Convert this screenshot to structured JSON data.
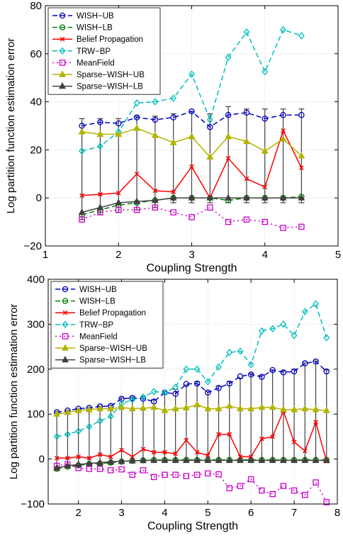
{
  "chart_data": [
    {
      "type": "line",
      "xlabel": "Coupling Strength",
      "ylabel": "Log partition function estimation error",
      "xlim": [
        1,
        5
      ],
      "ylim": [
        -20,
        80
      ],
      "xticks": [
        1,
        2,
        3,
        4,
        5
      ],
      "yticks": [
        -20,
        0,
        20,
        40,
        60,
        80
      ],
      "xtick_labels": [
        "1",
        "2",
        "3",
        "4",
        "5"
      ],
      "ytick_labels": [
        "−20",
        "0",
        "20",
        "40",
        "60",
        "80"
      ],
      "grid": true,
      "legend_position": "top-left",
      "x": [
        1.5,
        1.75,
        2.0,
        2.25,
        2.5,
        2.75,
        3.0,
        3.25,
        3.5,
        3.75,
        4.0,
        4.25,
        4.5
      ],
      "error_bars": {
        "from": "Sparse-WISH-LB",
        "to": "Sparse-WISH-UB",
        "cap_low": [
          -9,
          -7,
          -6,
          -5,
          -4,
          -2,
          -2,
          -2,
          -2,
          -2,
          -2,
          -2,
          -2
        ],
        "cap_high": [
          33,
          33,
          33,
          34,
          34,
          35,
          36,
          35,
          38,
          37,
          37,
          37,
          37
        ]
      },
      "series": [
        {
          "name": "WISH−UB",
          "color": "#0000cc",
          "line": "dashed",
          "marker": "circle",
          "values": [
            30,
            31.5,
            31,
            33.5,
            32.5,
            33.5,
            36,
            29.5,
            34.5,
            35.5,
            33,
            34.5,
            34.5
          ]
        },
        {
          "name": "WISH−LB",
          "color": "#008000",
          "line": "dashed",
          "marker": "circle",
          "values": [
            -7,
            -5,
            -3,
            -2,
            -1,
            0,
            0,
            0,
            -1,
            0,
            0,
            0,
            0.5
          ]
        },
        {
          "name": "Belief Propagation",
          "color": "#ff0000",
          "line": "solid",
          "marker": "x",
          "values": [
            1,
            1.5,
            2,
            10,
            3,
            2.5,
            13,
            0,
            16.5,
            8,
            4.5,
            28,
            12.5
          ]
        },
        {
          "name": "TRW−BP",
          "color": "#00bfbf",
          "line": "dashed",
          "marker": "diamond",
          "values": [
            19.5,
            21.5,
            27.5,
            39.5,
            40,
            41.5,
            51.5,
            32.5,
            58.5,
            69,
            52.5,
            70,
            67.5
          ]
        },
        {
          "name": "MeanField",
          "color": "#cc00cc",
          "line": "dotted",
          "marker": "square",
          "values": [
            -9,
            -6,
            -5,
            -5,
            -4,
            -6,
            -8,
            -4,
            -10,
            -9,
            -10,
            -12.5,
            -12
          ]
        },
        {
          "name": "Sparse−WISH−UB",
          "color": "#b3b300",
          "line": "solid",
          "marker": "triangle",
          "values": [
            27.5,
            26.5,
            26.5,
            29,
            26,
            23,
            25.5,
            17,
            25.5,
            23.5,
            19.5,
            24.5,
            17.5
          ]
        },
        {
          "name": "Sparse−WISH−LB",
          "color": "#404040",
          "line": "solid",
          "marker": "triangle",
          "values": [
            -6,
            -4,
            -2,
            -1.5,
            -1,
            0,
            0,
            0,
            0,
            0,
            0,
            0,
            0
          ]
        }
      ]
    },
    {
      "type": "line",
      "xlabel": "Coupling Strength",
      "ylabel": "Log partition function estimation error",
      "xlim": [
        1.3,
        8
      ],
      "ylim": [
        -100,
        400
      ],
      "xticks": [
        2,
        3,
        4,
        5,
        6,
        7,
        8
      ],
      "yticks": [
        -100,
        0,
        100,
        200,
        300,
        400
      ],
      "xtick_labels": [
        "2",
        "3",
        "4",
        "5",
        "6",
        "7",
        "8"
      ],
      "ytick_labels": [
        "−100",
        "0",
        "100",
        "200",
        "300",
        "400"
      ],
      "grid": true,
      "legend_position": "top-left",
      "x": [
        1.5,
        1.75,
        2.0,
        2.25,
        2.5,
        2.75,
        3.0,
        3.25,
        3.5,
        3.75,
        4.0,
        4.25,
        4.5,
        4.75,
        5.0,
        5.25,
        5.5,
        5.75,
        6.0,
        6.25,
        6.5,
        6.75,
        7.0,
        7.25,
        7.5,
        7.75
      ],
      "error_bars": {
        "from": "Sparse-WISH-LB",
        "to": "Sparse-WISH-UB",
        "cap_low": [
          -25,
          -20,
          -18,
          -16,
          -14,
          -12,
          -10,
          -9,
          -8,
          -7,
          -6,
          -6,
          -5,
          -5,
          -5,
          -5,
          -5,
          -5,
          -5,
          -5,
          -5,
          -5,
          -5,
          -5,
          -5,
          -5
        ],
        "cap_high": [
          105,
          108,
          112,
          115,
          118,
          120,
          136,
          138,
          135,
          132,
          150,
          155,
          165,
          172,
          150,
          162,
          172,
          180,
          190,
          186,
          198,
          196,
          200,
          214,
          218,
          198
        ]
      },
      "series": [
        {
          "name": "WISH−UB",
          "color": "#0000cc",
          "line": "dashed",
          "marker": "circle",
          "values": [
            104,
            108,
            112,
            114,
            117,
            118,
            134,
            136,
            134,
            128,
            148,
            145,
            167,
            168,
            148,
            158,
            168,
            184,
            188,
            183,
            198,
            193,
            195,
            213,
            217,
            195
          ]
        },
        {
          "name": "WISH−LB",
          "color": "#008000",
          "line": "dashed",
          "marker": "circle",
          "values": [
            -22,
            -17,
            -14,
            -11,
            -10,
            -8,
            -6,
            -4,
            -3,
            -2,
            -2,
            -2,
            -2,
            -2,
            -2,
            -2,
            -2,
            -2,
            -2,
            -2,
            -2,
            -2,
            -2,
            -2,
            -2,
            -2
          ]
        },
        {
          "name": "Belief Propagation",
          "color": "#ff0000",
          "line": "solid",
          "marker": "x",
          "values": [
            2,
            2,
            5,
            2,
            10,
            5,
            20,
            5,
            22,
            15,
            15,
            12,
            42,
            15,
            8,
            55,
            55,
            5,
            5,
            45,
            50,
            107,
            38,
            18,
            82,
            -5
          ]
        },
        {
          "name": "TRW−BP",
          "color": "#00bfbf",
          "line": "dashed",
          "marker": "diamond",
          "values": [
            50,
            55,
            62,
            72,
            85,
            95,
            123,
            132,
            138,
            150,
            148,
            160,
            200,
            200,
            172,
            205,
            237,
            240,
            210,
            285,
            290,
            300,
            275,
            328,
            345,
            270
          ]
        },
        {
          "name": "MeanField",
          "color": "#cc00cc",
          "line": "dotted",
          "marker": "square",
          "values": [
            -15,
            -12,
            -20,
            -22,
            -22,
            -25,
            -23,
            -35,
            -25,
            -40,
            -35,
            -35,
            -38,
            -35,
            -32,
            -34,
            -65,
            -60,
            -45,
            -70,
            -78,
            -60,
            -70,
            -80,
            -52,
            -96
          ]
        },
        {
          "name": "Sparse−WISH−UB",
          "color": "#b3b300",
          "line": "solid",
          "marker": "triangle",
          "values": [
            100,
            104,
            108,
            110,
            112,
            112,
            115,
            112,
            113,
            115,
            108,
            112,
            114,
            121,
            112,
            112,
            118,
            112,
            112,
            115,
            115,
            110,
            110,
            112,
            110,
            108
          ]
        },
        {
          "name": "Sparse−WISH−LB",
          "color": "#404040",
          "line": "solid",
          "marker": "triangle",
          "values": [
            -20,
            -15,
            -12,
            -10,
            -8,
            -6,
            -5,
            -4,
            -3,
            -3,
            -3,
            -3,
            -3,
            -3,
            -3,
            -3,
            -3,
            -3,
            -3,
            -3,
            -3,
            -3,
            -3,
            -3,
            -3,
            -3
          ]
        }
      ]
    }
  ]
}
